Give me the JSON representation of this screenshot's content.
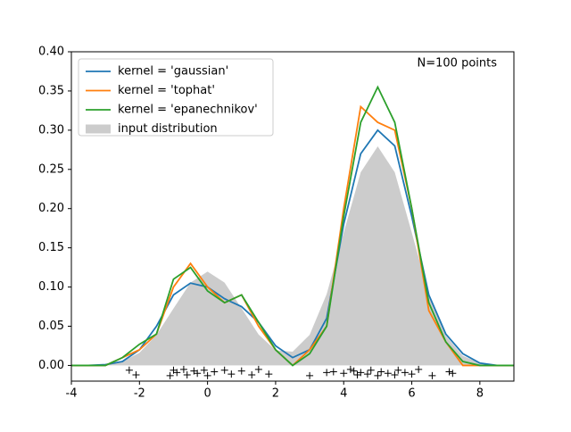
{
  "chart_data": {
    "type": "line",
    "annotation": "N=100 points",
    "x": [
      -4,
      -3.5,
      -3,
      -2.5,
      -2,
      -1.5,
      -1,
      -0.5,
      0,
      0.5,
      1,
      1.5,
      2,
      2.5,
      3,
      3.5,
      4,
      4.5,
      5,
      5.5,
      6,
      6.5,
      7,
      7.5,
      8,
      8.5,
      9
    ],
    "series": [
      {
        "name": "kernel = 'gaussian'",
        "color": "#1f77b4",
        "kind": "line",
        "values": [
          0,
          0,
          0.001,
          0.005,
          0.02,
          0.05,
          0.09,
          0.105,
          0.1,
          0.085,
          0.075,
          0.055,
          0.025,
          0.01,
          0.02,
          0.06,
          0.18,
          0.27,
          0.3,
          0.28,
          0.19,
          0.09,
          0.04,
          0.015,
          0.003,
          0,
          0
        ]
      },
      {
        "name": "kernel = 'tophat'",
        "color": "#ff7f0e",
        "kind": "line",
        "values": [
          0,
          0,
          0,
          0.01,
          0.02,
          0.04,
          0.1,
          0.13,
          0.1,
          0.08,
          0.09,
          0.05,
          0.02,
          0,
          0.02,
          0.05,
          0.2,
          0.33,
          0.31,
          0.3,
          0.2,
          0.07,
          0.03,
          0,
          0,
          0,
          0
        ]
      },
      {
        "name": "kernel = 'epanechnikov'",
        "color": "#2ca02c",
        "kind": "line",
        "values": [
          0,
          0,
          0,
          0.01,
          0.027,
          0.04,
          0.11,
          0.125,
          0.095,
          0.08,
          0.09,
          0.055,
          0.02,
          0,
          0.015,
          0.05,
          0.19,
          0.31,
          0.355,
          0.31,
          0.2,
          0.08,
          0.03,
          0.005,
          0,
          0,
          0
        ]
      },
      {
        "name": "input distribution",
        "color": "#cccccc",
        "kind": "area",
        "values": [
          0,
          0.0003,
          0.0013,
          0.0053,
          0.0162,
          0.0389,
          0.0726,
          0.1056,
          0.1197,
          0.1056,
          0.0727,
          0.0395,
          0.0193,
          0.0176,
          0.0391,
          0.091,
          0.1694,
          0.2464,
          0.2793,
          0.2464,
          0.1694,
          0.0907,
          0.0378,
          0.0123,
          0.0031,
          0.0006,
          0.0001
        ]
      }
    ],
    "rug": {
      "color": "#000000",
      "x": [
        -2.3,
        -2.1,
        -1.1,
        -1.0,
        -0.9,
        -0.7,
        -0.6,
        -0.4,
        -0.3,
        -0.1,
        0.0,
        0.2,
        0.5,
        0.7,
        1.0,
        1.3,
        1.5,
        1.8,
        3.0,
        3.5,
        3.7,
        4.0,
        4.2,
        4.3,
        4.4,
        4.5,
        4.7,
        4.8,
        5.0,
        5.1,
        5.3,
        5.5,
        5.6,
        5.8,
        6.0,
        6.2,
        6.6,
        7.1,
        7.2
      ],
      "y": [
        -0.006,
        -0.012,
        -0.013,
        -0.006,
        -0.009,
        -0.005,
        -0.012,
        -0.007,
        -0.01,
        -0.006,
        -0.013,
        -0.008,
        -0.006,
        -0.011,
        -0.007,
        -0.012,
        -0.005,
        -0.011,
        -0.013,
        -0.009,
        -0.008,
        -0.01,
        -0.005,
        -0.007,
        -0.012,
        -0.009,
        -0.011,
        -0.006,
        -0.013,
        -0.008,
        -0.01,
        -0.012,
        -0.006,
        -0.009,
        -0.011,
        -0.005,
        -0.013,
        -0.008,
        -0.01
      ]
    },
    "xlim": [
      -4,
      9
    ],
    "ylim": [
      -0.02,
      0.4
    ],
    "xticks": [
      -4,
      -2,
      0,
      2,
      4,
      6,
      8
    ],
    "yticks": [
      {
        "value": 0,
        "label": "0.00"
      },
      0.05,
      {
        "value": 0.1,
        "label": "0.10"
      },
      0.15,
      {
        "value": 0.2,
        "label": "0.20"
      },
      0.25,
      {
        "value": 0.3,
        "label": "0.30"
      },
      0.35,
      {
        "value": 0.4,
        "label": "0.40"
      }
    ],
    "legend": "upper left"
  }
}
